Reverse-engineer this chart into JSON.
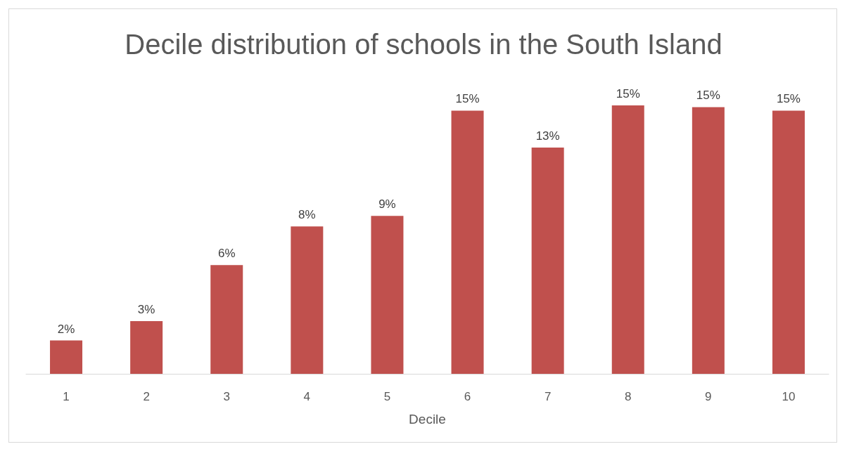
{
  "chart_data": {
    "type": "bar",
    "title": "Decile distribution of schools in the South Island",
    "xlabel": "Decile",
    "categories": [
      "1",
      "2",
      "3",
      "4",
      "5",
      "6",
      "7",
      "8",
      "9",
      "10"
    ],
    "values": [
      1.9,
      3.0,
      6.2,
      8.4,
      9.0,
      15.0,
      12.9,
      15.3,
      15.2,
      15.0
    ],
    "value_labels": [
      "2%",
      "3%",
      "6%",
      "8%",
      "9%",
      "15%",
      "13%",
      "15%",
      "15%",
      "15%"
    ],
    "color": "#c0504d",
    "grid": false
  }
}
